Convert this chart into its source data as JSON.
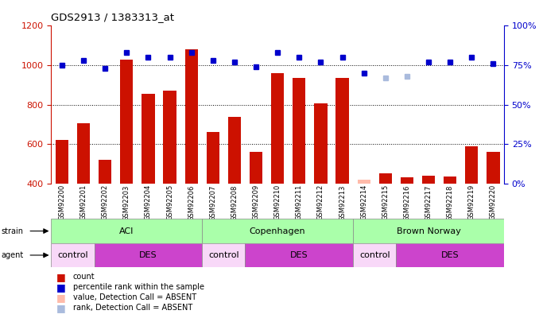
{
  "title": "GDS2913 / 1383313_at",
  "samples": [
    "GSM92200",
    "GSM92201",
    "GSM92202",
    "GSM92203",
    "GSM92204",
    "GSM92205",
    "GSM92206",
    "GSM92207",
    "GSM92208",
    "GSM92209",
    "GSM92210",
    "GSM92211",
    "GSM92212",
    "GSM92213",
    "GSM92214",
    "GSM92215",
    "GSM92216",
    "GSM92217",
    "GSM92218",
    "GSM92219",
    "GSM92220"
  ],
  "bar_values": [
    620,
    705,
    520,
    1030,
    855,
    870,
    1080,
    660,
    740,
    560,
    960,
    935,
    805,
    935,
    420,
    450,
    430,
    440,
    435,
    590,
    560
  ],
  "bar_absent": [
    false,
    false,
    false,
    false,
    false,
    false,
    false,
    false,
    false,
    false,
    false,
    false,
    false,
    false,
    true,
    false,
    false,
    false,
    false,
    false,
    false
  ],
  "dot_values": [
    75,
    78,
    73,
    83,
    80,
    80,
    83,
    78,
    77,
    74,
    83,
    80,
    77,
    80,
    70,
    67,
    68,
    77,
    77,
    80,
    76
  ],
  "dot_absent": [
    false,
    false,
    false,
    false,
    false,
    false,
    false,
    false,
    false,
    false,
    false,
    false,
    false,
    false,
    false,
    true,
    true,
    false,
    false,
    false,
    false
  ],
  "bar_color": "#cc1100",
  "bar_absent_color": "#ffbbaa",
  "dot_color": "#0000cc",
  "dot_absent_color": "#aabbdd",
  "ylim_left": [
    400,
    1200
  ],
  "ylim_right": [
    0,
    100
  ],
  "right_yticks": [
    0,
    25,
    50,
    75,
    100
  ],
  "right_yticklabels": [
    "0%",
    "25%",
    "50%",
    "75%",
    "100%"
  ],
  "left_yticks": [
    400,
    600,
    800,
    1000,
    1200
  ],
  "strain_color": "#aaffaa",
  "agent_control_color": "#f8d8f8",
  "agent_des_color": "#cc44cc",
  "background_color": "#ffffff",
  "strain_defs": [
    [
      0,
      6,
      "ACI"
    ],
    [
      7,
      13,
      "Copenhagen"
    ],
    [
      14,
      20,
      "Brown Norway"
    ]
  ],
  "agent_defs": [
    [
      0,
      1,
      "control"
    ],
    [
      2,
      6,
      "DES"
    ],
    [
      7,
      8,
      "control"
    ],
    [
      9,
      13,
      "DES"
    ],
    [
      14,
      15,
      "control"
    ],
    [
      16,
      20,
      "DES"
    ]
  ]
}
